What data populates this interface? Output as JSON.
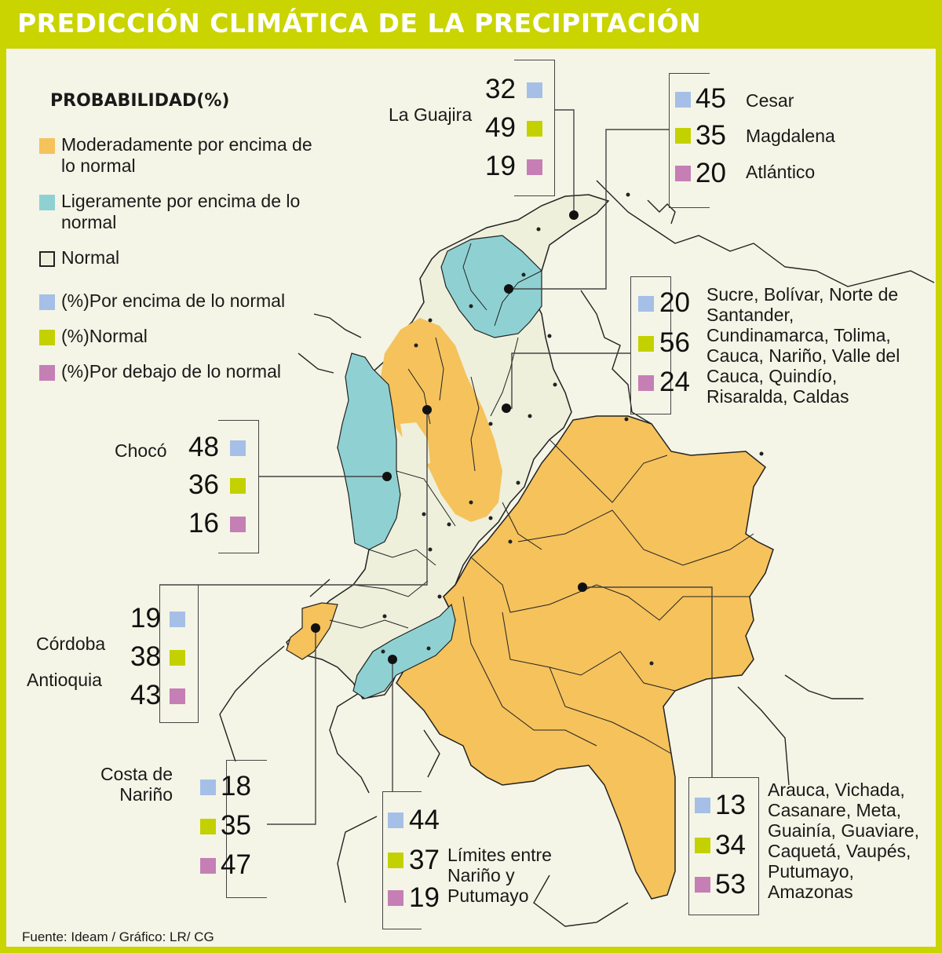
{
  "title": "PREDICCIÓN CLIMÁTICA DE LA PRECIPITACIÓN",
  "legend": {
    "heading": "PROBABILIDAD(%)",
    "items": [
      {
        "label": "Moderadamente por encima de lo normal",
        "color": "#f5c25c"
      },
      {
        "label": "Ligeramente por encima de lo normal",
        "color": "#8fd1d2"
      },
      {
        "label": "Normal",
        "color": "#eef0dc"
      },
      {
        "label": "(%)Por encima de lo normal",
        "color": "#a6bfe6"
      },
      {
        "label": "(%)Normal",
        "color": "#c4d100"
      },
      {
        "label": "(%)Por debajo de lo normal",
        "color": "#c57fb5"
      }
    ]
  },
  "regions": {
    "guajira": {
      "name": "La Guajira",
      "above": "32",
      "normal": "49",
      "below": "19"
    },
    "cesar": {
      "names": [
        "Cesar",
        "Magdalena",
        "Atlántico"
      ],
      "above": "45",
      "normal": "35",
      "below": "20"
    },
    "sucre": {
      "name": "Sucre, Bolívar, Norte de Santander, Cundinamarca, Tolima, Cauca, Nariño, Valle del Cauca, Quindío, Risaralda, Caldas",
      "above": "20",
      "normal": "56",
      "below": "24"
    },
    "choco": {
      "name": "Chocó",
      "above": "48",
      "normal": "36",
      "below": "16"
    },
    "cordoba": {
      "names": [
        "Córdoba",
        "Antioquia"
      ],
      "above": "19",
      "normal": "38",
      "below": "43"
    },
    "costa_narino": {
      "name": "Costa de Nariño",
      "above": "18",
      "normal": "35",
      "below": "47"
    },
    "limites": {
      "name": "Límites entre Nariño y Putumayo",
      "above": "44",
      "normal": "37",
      "below": "19"
    },
    "oriente": {
      "name": "Arauca, Vichada, Casanare, Meta, Guainía, Guaviare, Caquetá, Vaupés, Putumayo, Amazonas",
      "above": "13",
      "normal": "34",
      "below": "53"
    }
  },
  "footer": "Fuente: Ideam / Gráfico: LR/ CG"
}
